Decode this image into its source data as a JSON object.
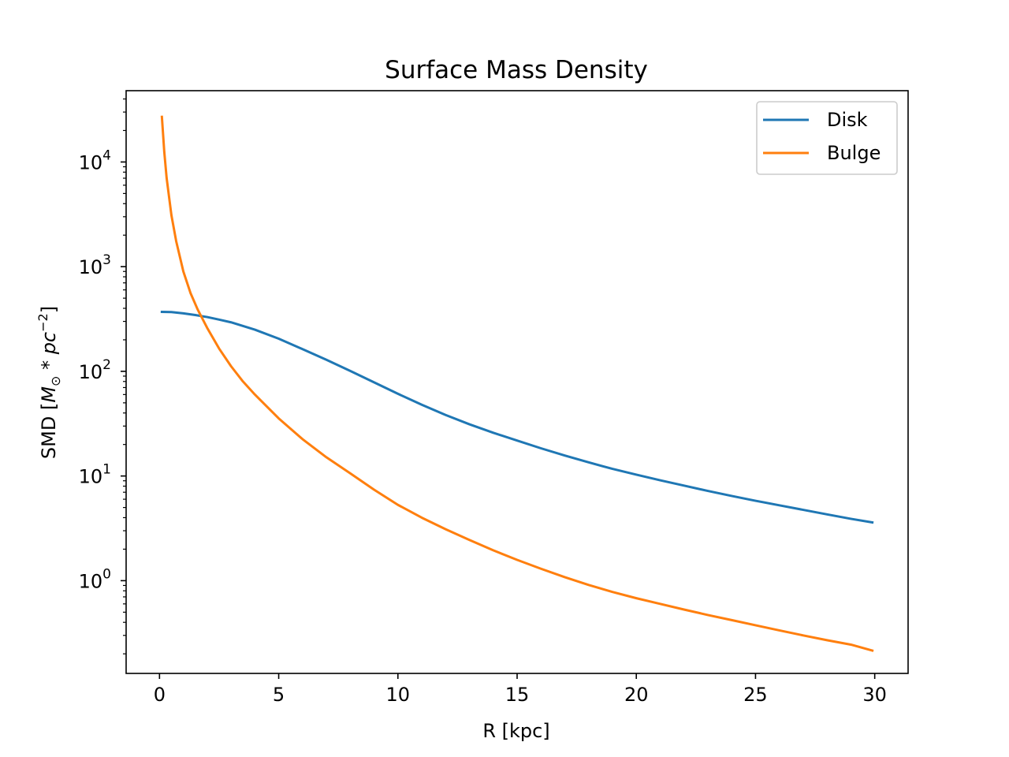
{
  "chart_data": {
    "type": "line",
    "title": "Surface Mass Density",
    "xlabel": "R [kpc]",
    "ylabel": "SMD [M⊙ * pc⁻²]",
    "ylabel_parts": {
      "prefix": "SMD [",
      "m": "M",
      "sub": "⊙",
      "mid": " * pc",
      "sup": "−2",
      "suffix": "]"
    },
    "xscale": "linear",
    "yscale": "log",
    "xlim": [
      -1.4,
      31.4
    ],
    "ylim": [
      0.13,
      48000
    ],
    "xticks": [
      0,
      5,
      10,
      15,
      20,
      25,
      30
    ],
    "xtick_labels": [
      "0",
      "5",
      "10",
      "15",
      "20",
      "25",
      "30"
    ],
    "yticks": [
      1,
      10,
      100,
      1000,
      10000
    ],
    "ytick_labels": [
      {
        "base": "10",
        "exp": "0"
      },
      {
        "base": "10",
        "exp": "1"
      },
      {
        "base": "10",
        "exp": "2"
      },
      {
        "base": "10",
        "exp": "3"
      },
      {
        "base": "10",
        "exp": "4"
      }
    ],
    "grid": false,
    "legend": {
      "placement": "upper right"
    },
    "series": [
      {
        "name": "Disk",
        "color": "#1f77b4",
        "x": [
          0.1,
          0.5,
          1,
          1.5,
          2,
          2.5,
          3,
          4,
          5,
          6,
          7,
          8,
          9,
          10,
          11,
          12,
          13,
          14,
          15,
          16,
          17,
          18,
          19,
          20,
          21,
          22,
          23,
          24,
          25,
          26,
          27,
          28,
          29,
          29.9
        ],
        "y": [
          370,
          368,
          358,
          345,
          330,
          312,
          294,
          250,
          205,
          163,
          129,
          101,
          78.5,
          61,
          48,
          38.3,
          31.2,
          25.9,
          21.8,
          18.4,
          15.7,
          13.5,
          11.7,
          10.3,
          9.1,
          8.1,
          7.2,
          6.45,
          5.8,
          5.25,
          4.75,
          4.3,
          3.9,
          3.6
        ]
      },
      {
        "name": "Bulge",
        "color": "#ff7f0e",
        "x": [
          0.1,
          0.2,
          0.3,
          0.5,
          0.7,
          1,
          1.3,
          1.6,
          2,
          2.5,
          3,
          3.5,
          4,
          5,
          6,
          7,
          8,
          9,
          10,
          11,
          12,
          13,
          14,
          15,
          16,
          17,
          18,
          19,
          20,
          21,
          22,
          23,
          24,
          25,
          26,
          27,
          28,
          29,
          29.9
        ],
        "y": [
          27000,
          12500,
          7000,
          3100,
          1750,
          900,
          560,
          390,
          260,
          165,
          112,
          80,
          60,
          35.5,
          22.5,
          15.1,
          10.6,
          7.4,
          5.3,
          4.0,
          3.1,
          2.45,
          1.95,
          1.58,
          1.3,
          1.08,
          0.91,
          0.78,
          0.68,
          0.6,
          0.53,
          0.47,
          0.42,
          0.375,
          0.335,
          0.3,
          0.27,
          0.245,
          0.215
        ]
      }
    ]
  }
}
